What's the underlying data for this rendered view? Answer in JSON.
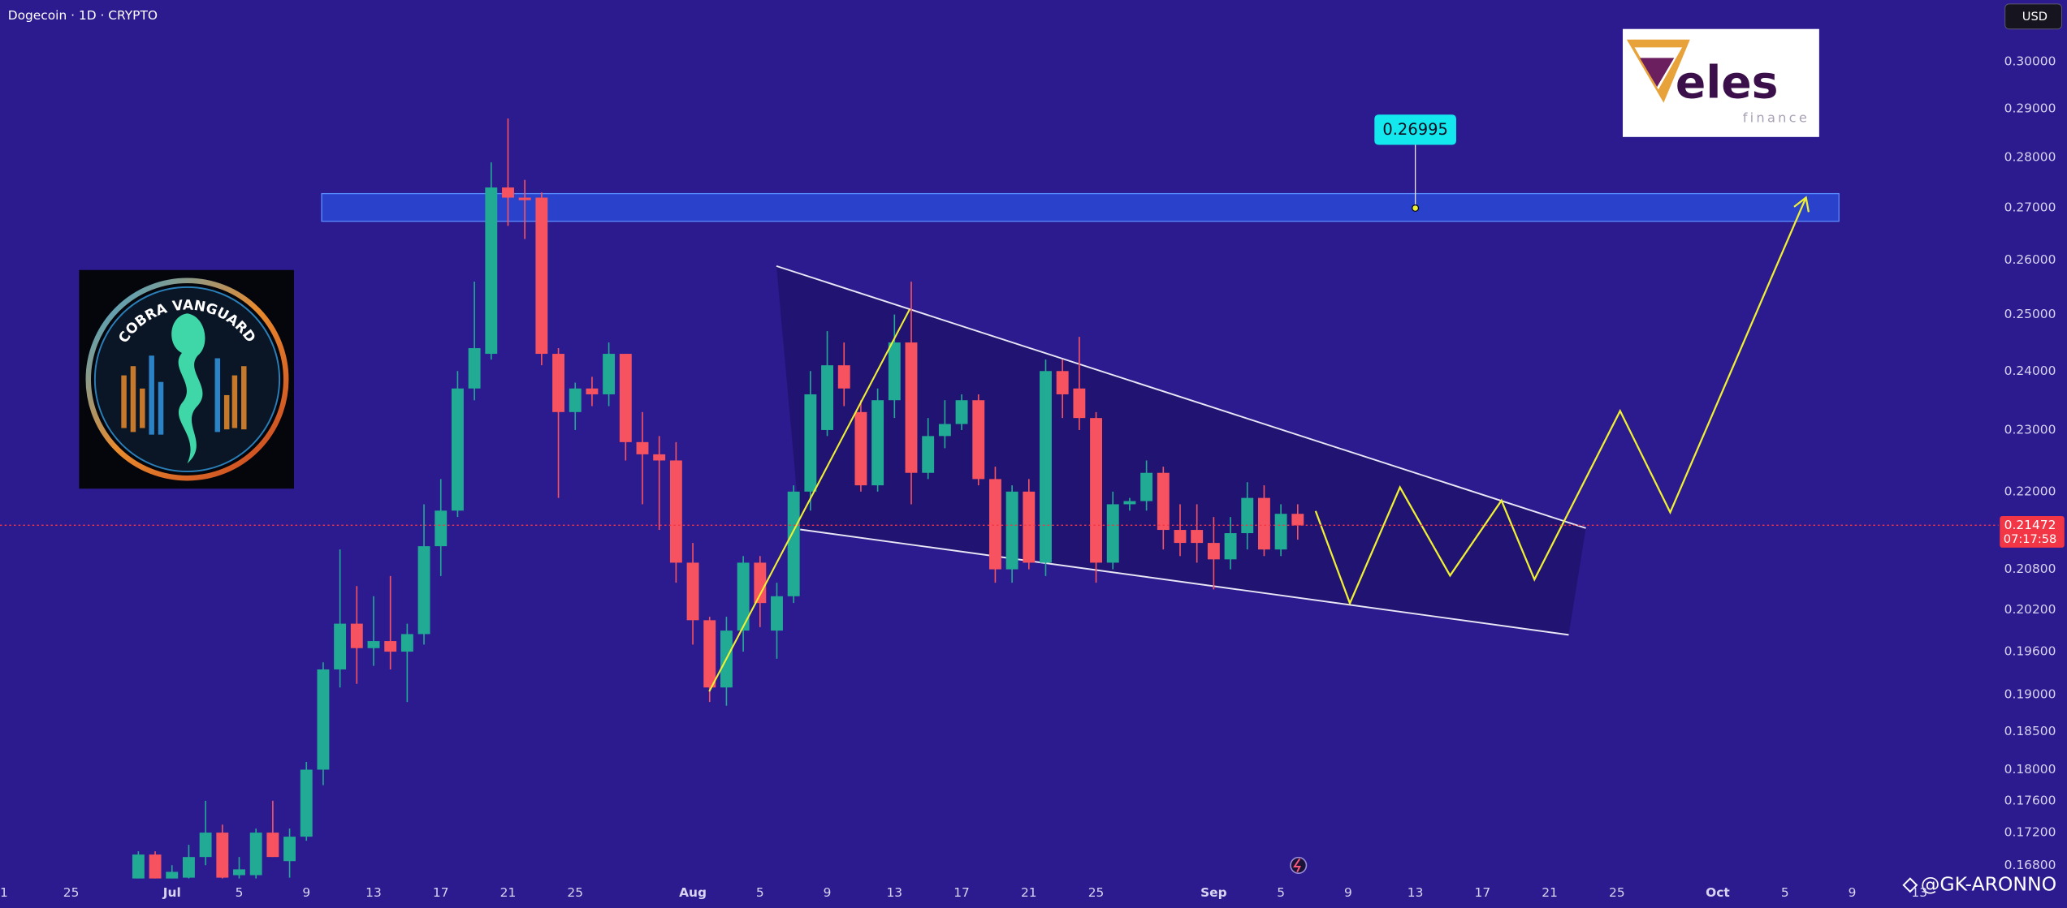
{
  "chart_data": {
    "type": "candlestick",
    "title": "Dogecoin · 1D · CRYPTO",
    "currency": "USD",
    "yscale": "log",
    "grid": false,
    "up_color": "#22ab94",
    "down_color": "#f7525f",
    "xlim": [
      "06-21",
      "10-17"
    ],
    "ylim": [
      0.1664,
      0.3137
    ],
    "yticks": [
      {
        "value": 0.3,
        "label": "0.30000"
      },
      {
        "value": 0.29,
        "label": "0.29000"
      },
      {
        "value": 0.28,
        "label": "0.28000"
      },
      {
        "value": 0.27,
        "label": "0.27000"
      },
      {
        "value": 0.26,
        "label": "0.26000"
      },
      {
        "value": 0.25,
        "label": "0.25000"
      },
      {
        "value": 0.24,
        "label": "0.24000"
      },
      {
        "value": 0.23,
        "label": "0.23000"
      },
      {
        "value": 0.22,
        "label": "0.22000"
      },
      {
        "value": 0.208,
        "label": "0.20800"
      },
      {
        "value": 0.202,
        "label": "0.20200"
      },
      {
        "value": 0.196,
        "label": "0.19600"
      },
      {
        "value": 0.19,
        "label": "0.19000"
      },
      {
        "value": 0.185,
        "label": "0.18500"
      },
      {
        "value": 0.18,
        "label": "0.18000"
      },
      {
        "value": 0.176,
        "label": "0.17600"
      },
      {
        "value": 0.172,
        "label": "0.17200"
      },
      {
        "value": 0.168,
        "label": "0.16800"
      }
    ],
    "xticks": [
      {
        "value": "06-21",
        "label": "1"
      },
      {
        "value": "06-25",
        "label": "25"
      },
      {
        "value": "07-01",
        "label": "Jul"
      },
      {
        "value": "07-05",
        "label": "5"
      },
      {
        "value": "07-09",
        "label": "9"
      },
      {
        "value": "07-13",
        "label": "13"
      },
      {
        "value": "07-17",
        "label": "17"
      },
      {
        "value": "07-21",
        "label": "21"
      },
      {
        "value": "07-25",
        "label": "25"
      },
      {
        "value": "08-01",
        "label": "Aug"
      },
      {
        "value": "08-05",
        "label": "5"
      },
      {
        "value": "08-09",
        "label": "9"
      },
      {
        "value": "08-13",
        "label": "13"
      },
      {
        "value": "08-17",
        "label": "17"
      },
      {
        "value": "08-21",
        "label": "21"
      },
      {
        "value": "08-25",
        "label": "25"
      },
      {
        "value": "09-01",
        "label": "Sep"
      },
      {
        "value": "09-05",
        "label": "5"
      },
      {
        "value": "09-09",
        "label": "9"
      },
      {
        "value": "09-13",
        "label": "13"
      },
      {
        "value": "09-17",
        "label": "17"
      },
      {
        "value": "09-21",
        "label": "21"
      },
      {
        "value": "09-25",
        "label": "25"
      },
      {
        "value": "10-01",
        "label": "Oct"
      },
      {
        "value": "10-05",
        "label": "5"
      },
      {
        "value": "10-09",
        "label": "9"
      },
      {
        "value": "10-13",
        "label": "13"
      }
    ],
    "x": [
      "06-29",
      "06-30",
      "07-01",
      "07-02",
      "07-03",
      "07-04",
      "07-05",
      "07-06",
      "07-07",
      "07-08",
      "07-09",
      "07-10",
      "07-11",
      "07-12",
      "07-13",
      "07-14",
      "07-15",
      "07-16",
      "07-17",
      "07-18",
      "07-19",
      "07-20",
      "07-21",
      "07-22",
      "07-23",
      "07-24",
      "07-25",
      "07-26",
      "07-27",
      "07-28",
      "07-29",
      "07-30",
      "07-31",
      "08-01",
      "08-02",
      "08-03",
      "08-04",
      "08-05",
      "08-06",
      "08-07",
      "08-08",
      "08-09",
      "08-10",
      "08-11",
      "08-12",
      "08-13",
      "08-14",
      "08-15",
      "08-16",
      "08-17",
      "08-18",
      "08-19",
      "08-20",
      "08-21",
      "08-22",
      "08-23",
      "08-24",
      "08-25",
      "08-26",
      "08-27",
      "08-28",
      "08-29",
      "08-30",
      "08-31",
      "09-01",
      "09-02",
      "09-03",
      "09-04",
      "09-05",
      "09-06"
    ],
    "open": [
      0.166,
      0.1693,
      0.1662,
      0.1665,
      0.169,
      0.172,
      0.1668,
      0.1668,
      0.172,
      0.1685,
      0.1715,
      0.18,
      0.1935,
      0.2,
      0.1965,
      0.1975,
      0.196,
      0.1985,
      0.2115,
      0.217,
      0.237,
      0.243,
      0.274,
      0.272,
      0.272,
      0.243,
      0.233,
      0.237,
      0.236,
      0.243,
      0.228,
      0.226,
      0.225,
      0.209,
      0.2005,
      0.191,
      0.199,
      0.209,
      0.199,
      0.204,
      0.22,
      0.23,
      0.241,
      0.233,
      0.221,
      0.235,
      0.245,
      0.223,
      0.229,
      0.231,
      0.235,
      0.222,
      0.208,
      0.22,
      0.209,
      0.24,
      0.237,
      0.232,
      0.209,
      0.218,
      0.2185,
      0.223,
      0.214,
      0.214,
      0.212,
      0.2095,
      0.2135,
      0.219,
      0.211,
      0.2165
    ],
    "high": [
      0.1697,
      0.1697,
      0.168,
      0.1705,
      0.176,
      0.173,
      0.169,
      0.1725,
      0.176,
      0.1725,
      0.181,
      0.1945,
      0.211,
      0.2055,
      0.204,
      0.207,
      0.2,
      0.218,
      0.222,
      0.24,
      0.256,
      0.279,
      0.288,
      0.2755,
      0.273,
      0.244,
      0.238,
      0.239,
      0.245,
      0.243,
      0.233,
      0.229,
      0.228,
      0.212,
      0.201,
      0.201,
      0.21,
      0.21,
      0.206,
      0.221,
      0.24,
      0.247,
      0.245,
      0.235,
      0.237,
      0.25,
      0.256,
      0.232,
      0.235,
      0.236,
      0.236,
      0.224,
      0.221,
      0.222,
      0.242,
      0.242,
      0.246,
      0.233,
      0.22,
      0.219,
      0.225,
      0.224,
      0.218,
      0.218,
      0.216,
      0.216,
      0.2215,
      0.221,
      0.218,
      0.218
    ],
    "low": [
      0.166,
      0.166,
      0.1655,
      0.166,
      0.168,
      0.166,
      0.1655,
      0.166,
      0.169,
      0.1665,
      0.171,
      0.178,
      0.191,
      0.1915,
      0.194,
      0.1935,
      0.189,
      0.197,
      0.207,
      0.216,
      0.235,
      0.242,
      0.2665,
      0.264,
      0.241,
      0.219,
      0.23,
      0.234,
      0.234,
      0.225,
      0.218,
      0.214,
      0.206,
      0.197,
      0.189,
      0.1885,
      0.196,
      0.1995,
      0.195,
      0.203,
      0.217,
      0.229,
      0.234,
      0.22,
      0.22,
      0.232,
      0.218,
      0.222,
      0.227,
      0.23,
      0.221,
      0.206,
      0.206,
      0.208,
      0.207,
      0.232,
      0.23,
      0.206,
      0.208,
      0.217,
      0.217,
      0.211,
      0.21,
      0.209,
      0.205,
      0.208,
      0.211,
      0.21,
      0.21,
      0.2125
    ],
    "close": [
      0.1693,
      0.1662,
      0.1672,
      0.169,
      0.172,
      0.1665,
      0.1675,
      0.172,
      0.169,
      0.1715,
      0.18,
      0.1935,
      0.2,
      0.1965,
      0.1975,
      0.196,
      0.1985,
      0.2115,
      0.217,
      0.237,
      0.244,
      0.274,
      0.272,
      0.2715,
      0.243,
      0.233,
      0.237,
      0.236,
      0.243,
      0.228,
      0.226,
      0.225,
      0.209,
      0.2005,
      0.191,
      0.199,
      0.209,
      0.203,
      0.204,
      0.22,
      0.236,
      0.241,
      0.237,
      0.221,
      0.235,
      0.245,
      0.223,
      0.229,
      0.231,
      0.235,
      0.222,
      0.208,
      0.22,
      0.209,
      0.24,
      0.236,
      0.232,
      0.209,
      0.218,
      0.2185,
      0.223,
      0.214,
      0.212,
      0.212,
      0.2095,
      0.2135,
      0.219,
      0.211,
      0.2165,
      0.2147
    ],
    "last_price": 0.21472,
    "countdown": "07:17:58",
    "price_color": "#f23645",
    "annotation": {
      "x": "09-13",
      "value": 0.26995
    },
    "logos": {
      "cobra": "COBRA VANGUARD",
      "veles": "eles",
      "veles_sub": "finance"
    },
    "watermark": "@GK-ARONNO"
  }
}
